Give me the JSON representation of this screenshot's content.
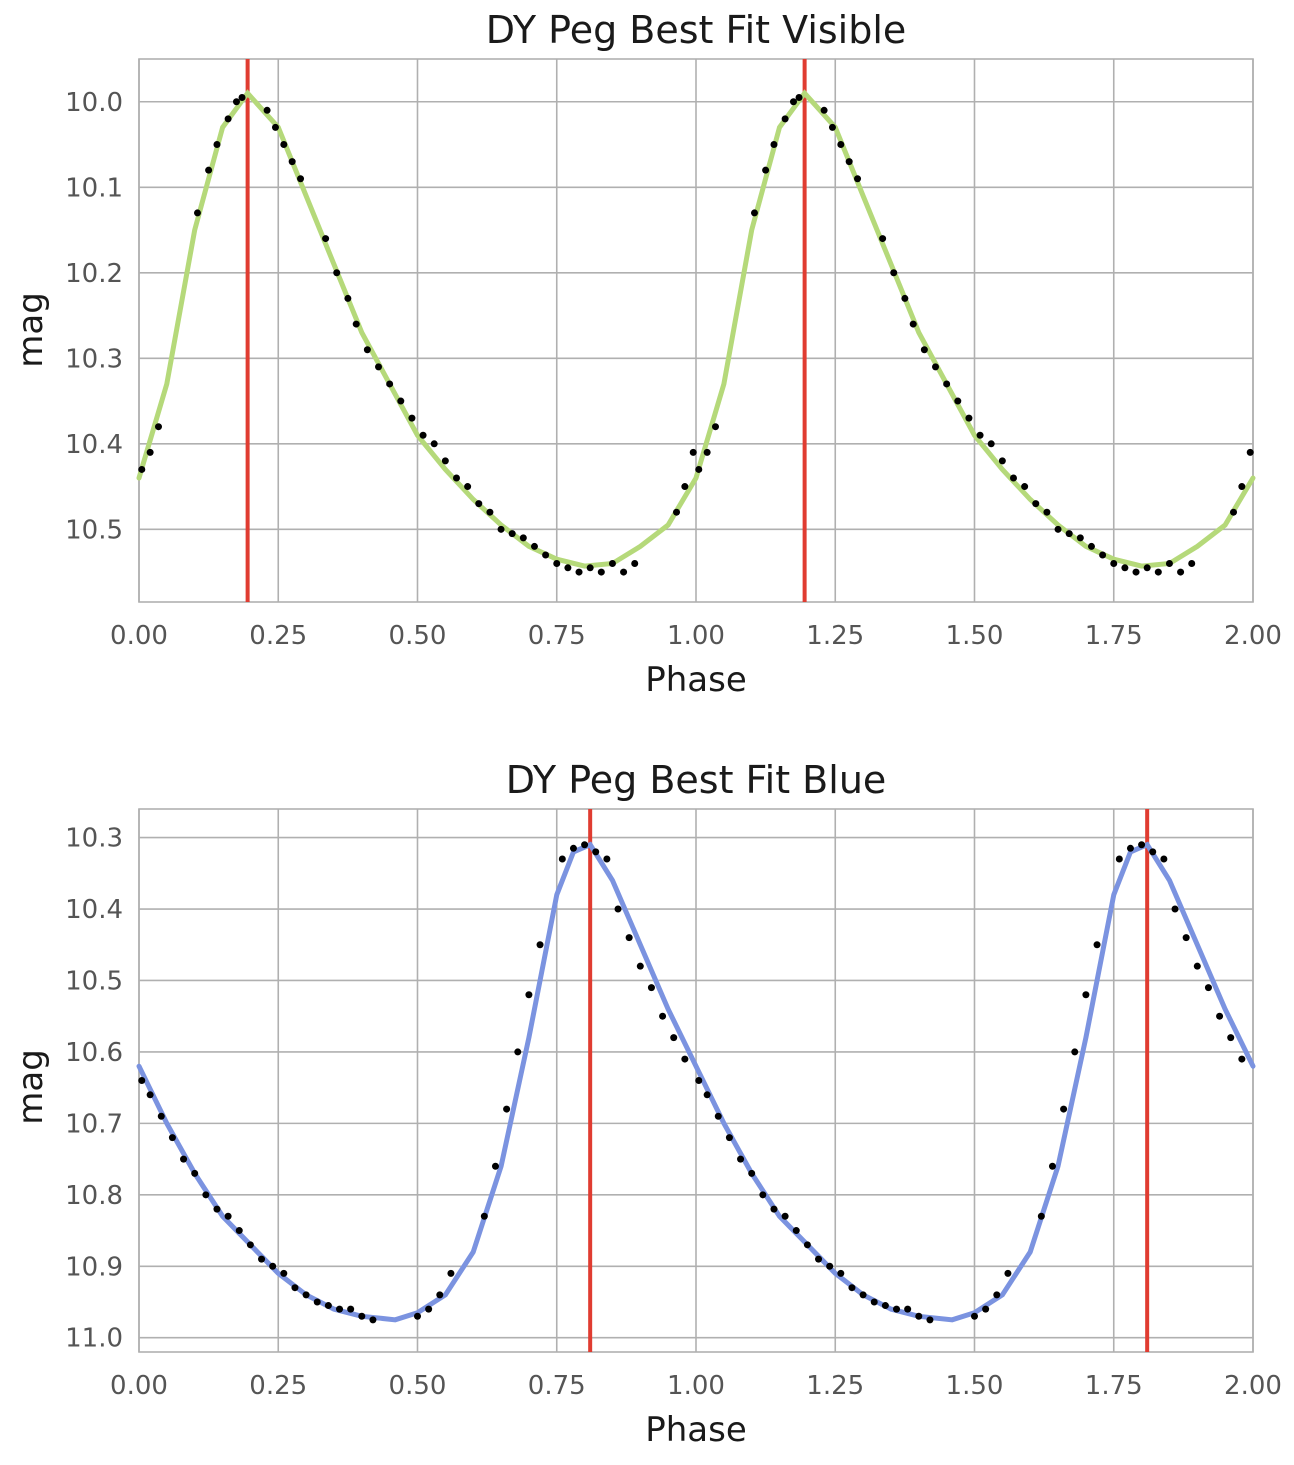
{
  "chart_data": [
    {
      "type": "scatter",
      "title": "DY Peg Best Fit Visible",
      "xlabel": "Phase",
      "ylabel": "mag",
      "xlim": [
        0.0,
        2.0
      ],
      "ylim": [
        10.585,
        9.95
      ],
      "y_inverted": true,
      "grid": true,
      "x_ticks": [
        0.0,
        0.25,
        0.5,
        0.75,
        1.0,
        1.25,
        1.5,
        1.75,
        2.0
      ],
      "x_tick_labels": [
        "0.00",
        "0.25",
        "0.50",
        "0.75",
        "1.00",
        "1.25",
        "1.50",
        "1.75",
        "2.00"
      ],
      "y_ticks": [
        10.0,
        10.1,
        10.2,
        10.3,
        10.4,
        10.5
      ],
      "y_tick_labels": [
        "10.0",
        "10.1",
        "10.2",
        "10.3",
        "10.4",
        "10.5"
      ],
      "vertical_lines": [
        0.195,
        1.195
      ],
      "vertical_line_color": "#e03c31",
      "fit_color": "#b5d97a",
      "point_color": "#000000",
      "fit_curve": {
        "x": [
          0.0,
          0.05,
          0.1,
          0.15,
          0.195,
          0.25,
          0.3,
          0.35,
          0.4,
          0.45,
          0.5,
          0.55,
          0.6,
          0.65,
          0.7,
          0.75,
          0.8,
          0.85,
          0.9,
          0.95,
          1.0
        ],
        "y": [
          10.44,
          10.33,
          10.15,
          10.03,
          9.99,
          10.03,
          10.11,
          10.19,
          10.27,
          10.33,
          10.39,
          10.43,
          10.465,
          10.495,
          10.52,
          10.535,
          10.543,
          10.54,
          10.52,
          10.495,
          10.44
        ]
      },
      "observations": {
        "x": [
          0.005,
          0.02,
          0.035,
          0.105,
          0.125,
          0.14,
          0.16,
          0.175,
          0.185,
          0.23,
          0.245,
          0.26,
          0.275,
          0.29,
          0.335,
          0.355,
          0.375,
          0.39,
          0.41,
          0.43,
          0.45,
          0.47,
          0.49,
          0.51,
          0.53,
          0.55,
          0.57,
          0.59,
          0.61,
          0.63,
          0.65,
          0.67,
          0.69,
          0.71,
          0.73,
          0.75,
          0.77,
          0.79,
          0.81,
          0.83,
          0.85,
          0.87,
          0.89,
          0.965,
          0.98,
          0.995
        ],
        "y": [
          10.43,
          10.41,
          10.38,
          10.13,
          10.08,
          10.05,
          10.02,
          10.0,
          9.995,
          10.01,
          10.03,
          10.05,
          10.07,
          10.09,
          10.16,
          10.2,
          10.23,
          10.26,
          10.29,
          10.31,
          10.33,
          10.35,
          10.37,
          10.39,
          10.4,
          10.42,
          10.44,
          10.45,
          10.47,
          10.48,
          10.5,
          10.505,
          10.51,
          10.52,
          10.53,
          10.54,
          10.545,
          10.55,
          10.545,
          10.55,
          10.54,
          10.55,
          10.54,
          10.48,
          10.45,
          10.41
        ]
      }
    },
    {
      "type": "scatter",
      "title": "DY Peg Best Fit Blue",
      "xlabel": "Phase",
      "ylabel": "mag",
      "xlim": [
        0.0,
        2.0
      ],
      "ylim": [
        11.02,
        10.26
      ],
      "y_inverted": true,
      "grid": true,
      "x_ticks": [
        0.0,
        0.25,
        0.5,
        0.75,
        1.0,
        1.25,
        1.5,
        1.75,
        2.0
      ],
      "x_tick_labels": [
        "0.00",
        "0.25",
        "0.50",
        "0.75",
        "1.00",
        "1.25",
        "1.50",
        "1.75",
        "2.00"
      ],
      "y_ticks": [
        10.3,
        10.4,
        10.5,
        10.6,
        10.7,
        10.8,
        10.9,
        11.0
      ],
      "y_tick_labels": [
        "10.3",
        "10.4",
        "10.5",
        "10.6",
        "10.7",
        "10.8",
        "10.9",
        "11.0"
      ],
      "vertical_lines": [
        0.81,
        1.81
      ],
      "vertical_line_color": "#e03c31",
      "fit_color": "#7b93e0",
      "point_color": "#000000",
      "fit_curve": {
        "x": [
          0.0,
          0.05,
          0.1,
          0.15,
          0.2,
          0.25,
          0.3,
          0.35,
          0.4,
          0.46,
          0.5,
          0.55,
          0.6,
          0.65,
          0.7,
          0.75,
          0.78,
          0.81,
          0.85,
          0.9,
          0.95,
          1.0
        ],
        "y": [
          10.62,
          10.7,
          10.77,
          10.83,
          10.87,
          10.91,
          10.94,
          10.96,
          10.97,
          10.975,
          10.965,
          10.94,
          10.88,
          10.76,
          10.58,
          10.38,
          10.32,
          10.31,
          10.36,
          10.45,
          10.54,
          10.62
        ]
      },
      "observations": {
        "x": [
          0.005,
          0.02,
          0.04,
          0.06,
          0.08,
          0.1,
          0.12,
          0.14,
          0.16,
          0.18,
          0.2,
          0.22,
          0.24,
          0.26,
          0.28,
          0.3,
          0.32,
          0.34,
          0.36,
          0.38,
          0.4,
          0.42,
          0.5,
          0.52,
          0.54,
          0.56,
          0.62,
          0.64,
          0.66,
          0.68,
          0.7,
          0.72,
          0.76,
          0.78,
          0.8,
          0.82,
          0.84,
          0.86,
          0.88,
          0.9,
          0.92,
          0.94,
          0.96,
          0.98
        ],
        "y": [
          10.64,
          10.66,
          10.69,
          10.72,
          10.75,
          10.77,
          10.8,
          10.82,
          10.83,
          10.85,
          10.87,
          10.89,
          10.9,
          10.91,
          10.93,
          10.94,
          10.95,
          10.955,
          10.96,
          10.96,
          10.97,
          10.975,
          10.97,
          10.96,
          10.94,
          10.91,
          10.83,
          10.76,
          10.68,
          10.6,
          10.52,
          10.45,
          10.33,
          10.315,
          10.31,
          10.32,
          10.33,
          10.4,
          10.44,
          10.48,
          10.51,
          10.55,
          10.58,
          10.61
        ]
      }
    }
  ]
}
